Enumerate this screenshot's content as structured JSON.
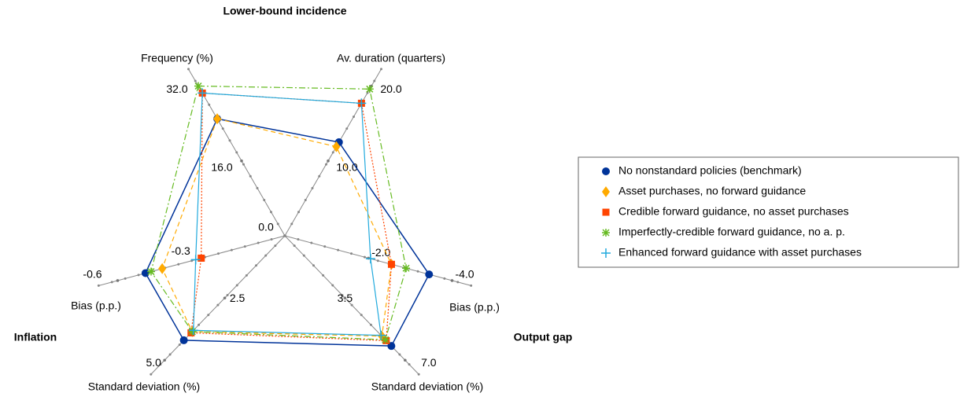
{
  "chart_data": {
    "type": "radar",
    "group_labels": [
      "Lower-bound incidence",
      "Inflation",
      "Output gap"
    ],
    "axes": [
      {
        "name": "Frequency (%)",
        "lim": [
          0,
          32
        ],
        "ticks": [
          {
            "value": 0,
            "label": "0.0"
          },
          {
            "value": 16,
            "label": "16.0"
          },
          {
            "value": 32,
            "label": "32.0"
          }
        ]
      },
      {
        "name": "Av. duration (quarters)",
        "lim": [
          0,
          20
        ],
        "ticks": [
          {
            "value": 10,
            "label": "10.0"
          },
          {
            "value": 20,
            "label": "20.0"
          }
        ]
      },
      {
        "name": "Bias (p.p.)",
        "lim": [
          0,
          -4
        ],
        "ticks": [
          {
            "value": -2,
            "label": "-2.0"
          },
          {
            "value": -4,
            "label": "-4.0"
          }
        ]
      },
      {
        "name": "Standard deviation (%)",
        "lim": [
          0,
          7
        ],
        "ticks": [
          {
            "value": 3.5,
            "label": "3.5"
          },
          {
            "value": 7,
            "label": "7.0"
          }
        ]
      },
      {
        "name": "Standard deviation (%)",
        "lim": [
          0,
          5
        ],
        "ticks": [
          {
            "value": 2.5,
            "label": "2.5"
          },
          {
            "value": 5,
            "label": "5.0"
          }
        ]
      },
      {
        "name": "Bias (p.p.)",
        "lim": [
          0,
          -0.6
        ],
        "ticks": [
          {
            "value": -0.3,
            "label": "-0.3"
          },
          {
            "value": -0.6,
            "label": "-0.6"
          }
        ]
      }
    ],
    "series": [
      {
        "name": "No nonstandard policies (benchmark)",
        "color": "#003399",
        "values": [
          25,
          12.5,
          -3.45,
          6.2,
          4.2,
          -0.5
        ]
      },
      {
        "name": "Asset purchases, no forward guidance",
        "color": "#ffaa00",
        "values": [
          25,
          11.9,
          -2.55,
          5.65,
          3.85,
          -0.44
        ]
      },
      {
        "name": "Credible forward guidance, no asset purchases",
        "color": "#ff4400",
        "values": [
          30.5,
          17.7,
          -2.55,
          5.9,
          3.9,
          -0.3
        ]
      },
      {
        "name": "Imperfectly-credible forward guidance, no a. p.",
        "color": "#66bb22",
        "values": [
          32,
          19.6,
          -2.9,
          5.85,
          3.85,
          -0.48
        ]
      },
      {
        "name": "Enhanced forward guidance with asset purchases",
        "color": "#22aadd",
        "values": [
          30.5,
          17.7,
          -2.05,
          5.6,
          3.8,
          -0.32
        ]
      }
    ],
    "legend": "right"
  }
}
